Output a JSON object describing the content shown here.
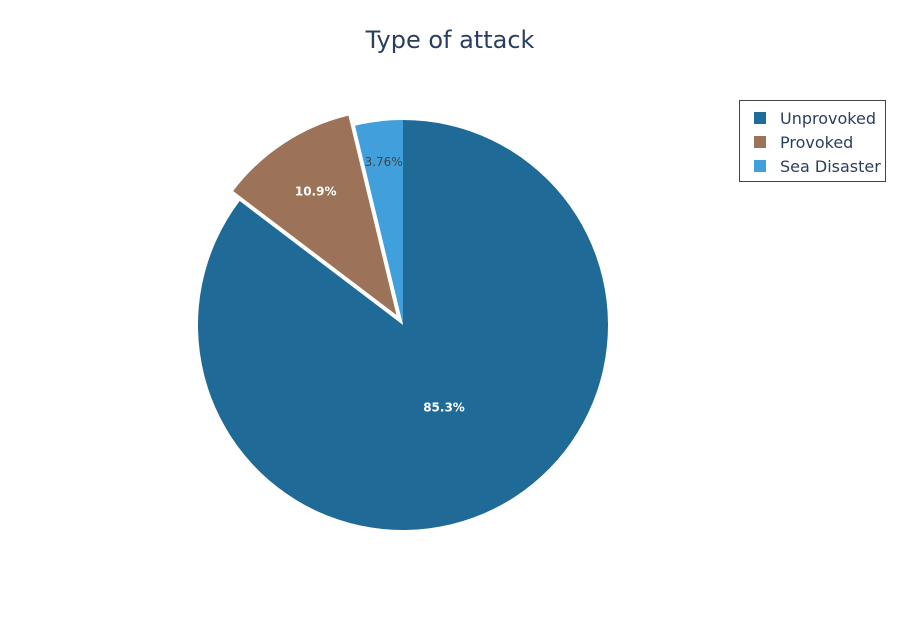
{
  "chart_data": {
    "type": "pie",
    "title": "Type of attack",
    "labels": [
      "Unprovoked",
      "Provoked",
      "Sea Disaster"
    ],
    "values": [
      85.3,
      10.9,
      3.76
    ],
    "text_labels": [
      "85.3%",
      "10.9%",
      "3.76%"
    ],
    "colors": [
      "#1f6a96",
      "#9c7359",
      "#41a0dc"
    ],
    "label_colors": [
      "#ffffff",
      "#ffffff",
      "#444444"
    ],
    "pulled": [
      false,
      true,
      false
    ],
    "legend_position": "top-right"
  }
}
